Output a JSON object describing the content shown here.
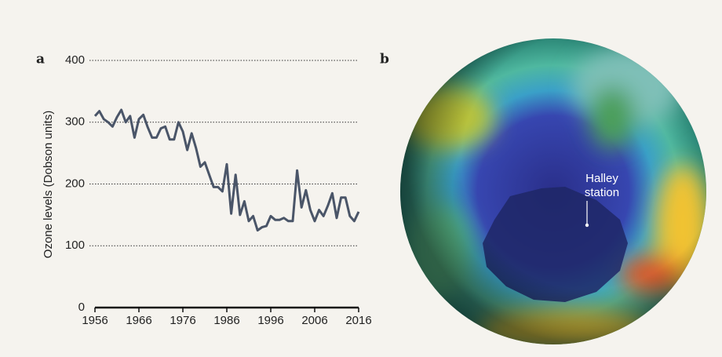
{
  "chart_data": {
    "type": "line",
    "panel_label": "a",
    "ylabel": "Ozone levels (Dobson units)",
    "x": [
      1956,
      1957,
      1958,
      1959,
      1960,
      1961,
      1962,
      1963,
      1964,
      1965,
      1966,
      1967,
      1968,
      1969,
      1970,
      1971,
      1972,
      1973,
      1974,
      1975,
      1976,
      1977,
      1978,
      1979,
      1980,
      1981,
      1982,
      1983,
      1984,
      1985,
      1986,
      1987,
      1988,
      1989,
      1990,
      1991,
      1992,
      1993,
      1994,
      1995,
      1996,
      1997,
      1998,
      1999,
      2000,
      2001,
      2002,
      2003,
      2004,
      2005,
      2006,
      2007,
      2008,
      2009,
      2010,
      2011,
      2012,
      2013,
      2014,
      2015,
      2016
    ],
    "values": [
      310,
      318,
      305,
      300,
      293,
      308,
      320,
      300,
      310,
      275,
      305,
      312,
      292,
      275,
      275,
      290,
      293,
      272,
      272,
      300,
      285,
      255,
      282,
      258,
      228,
      235,
      215,
      195,
      195,
      188,
      232,
      152,
      215,
      150,
      172,
      140,
      148,
      125,
      130,
      132,
      148,
      142,
      142,
      145,
      140,
      140,
      222,
      162,
      190,
      158,
      140,
      158,
      148,
      165,
      185,
      145,
      178,
      178,
      148,
      140,
      155
    ],
    "color": "#4a5568",
    "xlim": [
      1956,
      2016
    ],
    "xticks": [
      1956,
      1966,
      1976,
      1986,
      1996,
      2006,
      2016
    ],
    "ylim": [
      0,
      400
    ],
    "yticks": [
      0,
      100,
      200,
      300,
      400
    ],
    "grid": true
  },
  "image": {
    "panel_label": "b",
    "annotation": [
      "Halley",
      "station"
    ]
  }
}
